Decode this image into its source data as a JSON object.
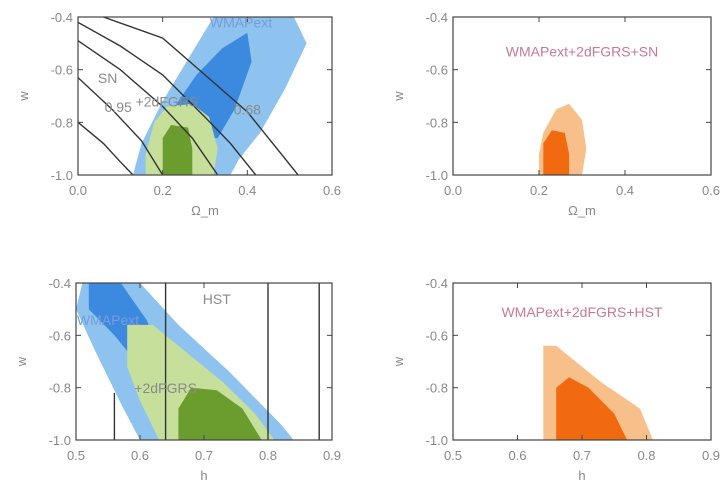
{
  "chart_data": [
    {
      "type": "contour",
      "id": "p1",
      "xlabel": "Ω_m",
      "ylabel": "w",
      "xlim": [
        0.0,
        0.6
      ],
      "ylim": [
        -1.0,
        -0.4
      ],
      "xticks": [
        "0.0",
        "0.2",
        "0.4",
        "0.6"
      ],
      "yticks": [
        "-0.4",
        "-0.6",
        "-0.8",
        "-1.0"
      ],
      "labels": [
        {
          "text": "WMAPext",
          "x": 0.385,
          "y": -0.44,
          "color": "#7a9bd8"
        },
        {
          "text": "SN",
          "x": 0.07,
          "y": -0.65,
          "color": "#8a8a8a"
        },
        {
          "text": "+2dFGRS",
          "x": 0.21,
          "y": -0.74,
          "color": "#8a8a8a"
        },
        {
          "text": "0.95",
          "x": 0.095,
          "y": -0.76,
          "color": "#8a8a8a"
        },
        {
          "text": "0.68",
          "x": 0.4,
          "y": -0.77,
          "color": "#8a8a8a"
        }
      ],
      "series": [
        {
          "color": "#8dc3ee",
          "poly": [
            [
              0.2,
              -1.0
            ],
            [
              0.36,
              -1.0
            ],
            [
              0.38,
              -0.94
            ],
            [
              0.43,
              -0.84
            ],
            [
              0.49,
              -0.67
            ],
            [
              0.54,
              -0.5
            ],
            [
              0.51,
              -0.4
            ],
            [
              0.32,
              -0.4
            ],
            [
              0.26,
              -0.56
            ],
            [
              0.2,
              -0.72
            ],
            [
              0.15,
              -0.88
            ],
            [
              0.13,
              -1.0
            ]
          ]
        },
        {
          "color": "#3b8ae0",
          "poly": [
            [
              0.22,
              -0.86
            ],
            [
              0.33,
              -0.86
            ],
            [
              0.37,
              -0.75
            ],
            [
              0.41,
              -0.57
            ],
            [
              0.4,
              -0.46
            ],
            [
              0.34,
              -0.52
            ],
            [
              0.28,
              -0.62
            ],
            [
              0.22,
              -0.76
            ]
          ]
        },
        {
          "color": "#c6df9a",
          "poly": [
            [
              0.16,
              -1.0
            ],
            [
              0.32,
              -1.0
            ],
            [
              0.33,
              -0.9
            ],
            [
              0.31,
              -0.78
            ],
            [
              0.27,
              -0.73
            ],
            [
              0.21,
              -0.74
            ],
            [
              0.18,
              -0.8
            ],
            [
              0.16,
              -0.92
            ]
          ]
        },
        {
          "color": "#6a9c2e",
          "poly": [
            [
              0.2,
              -1.0
            ],
            [
              0.27,
              -1.0
            ],
            [
              0.27,
              -0.9
            ],
            [
              0.26,
              -0.82
            ],
            [
              0.22,
              -0.81
            ],
            [
              0.2,
              -0.86
            ],
            [
              0.2,
              -0.95
            ]
          ]
        }
      ],
      "lines": [
        {
          "color": "#333333",
          "points": [
            [
              0.0,
              -0.42
            ],
            [
              0.1,
              -0.51
            ],
            [
              0.2,
              -0.62
            ],
            [
              0.3,
              -0.78
            ],
            [
              0.36,
              -0.88
            ],
            [
              0.42,
              -1.0
            ]
          ]
        },
        {
          "color": "#333333",
          "points": [
            [
              0.0,
              -0.49
            ],
            [
              0.1,
              -0.6
            ],
            [
              0.2,
              -0.74
            ],
            [
              0.27,
              -0.86
            ],
            [
              0.33,
              -1.0
            ]
          ]
        },
        {
          "color": "#333333",
          "points": [
            [
              0.0,
              -0.63
            ],
            [
              0.08,
              -0.75
            ],
            [
              0.15,
              -0.87
            ],
            [
              0.2,
              -1.0
            ]
          ]
        },
        {
          "color": "#333333",
          "points": [
            [
              0.0,
              -0.8
            ],
            [
              0.06,
              -0.88
            ],
            [
              0.1,
              -0.95
            ],
            [
              0.13,
              -1.0
            ]
          ]
        },
        {
          "color": "#333333",
          "points": [
            [
              0.06,
              -0.4
            ],
            [
              0.2,
              -0.48
            ],
            [
              0.3,
              -0.62
            ],
            [
              0.4,
              -0.76
            ],
            [
              0.47,
              -0.9
            ],
            [
              0.52,
              -1.0
            ]
          ]
        }
      ]
    },
    {
      "type": "contour",
      "id": "p2",
      "xlabel": "Ω_m",
      "ylabel": "w",
      "xlim": [
        0.0,
        0.6
      ],
      "ylim": [
        -1.0,
        -0.4
      ],
      "xticks": [
        "0.0",
        "0.2",
        "0.4",
        "0.6"
      ],
      "yticks": [
        "-0.4",
        "-0.6",
        "-0.8",
        "-1.0"
      ],
      "labels": [
        {
          "text": "WMAPext+2dFGRS+SN",
          "x": 0.3,
          "y": -0.55,
          "color": "#c87898"
        }
      ],
      "series": [
        {
          "color": "#f7c08a",
          "poly": [
            [
              0.2,
              -1.0
            ],
            [
              0.3,
              -1.0
            ],
            [
              0.31,
              -0.9
            ],
            [
              0.3,
              -0.79
            ],
            [
              0.27,
              -0.73
            ],
            [
              0.24,
              -0.75
            ],
            [
              0.21,
              -0.84
            ],
            [
              0.2,
              -0.92
            ]
          ]
        },
        {
          "color": "#f26a10",
          "poly": [
            [
              0.21,
              -1.0
            ],
            [
              0.27,
              -1.0
            ],
            [
              0.27,
              -0.92
            ],
            [
              0.26,
              -0.84
            ],
            [
              0.23,
              -0.83
            ],
            [
              0.21,
              -0.88
            ]
          ]
        }
      ],
      "lines": []
    },
    {
      "type": "contour",
      "id": "p3",
      "xlabel": "h",
      "ylabel": "w",
      "xlim": [
        0.5,
        0.9
      ],
      "ylim": [
        -1.0,
        -0.4
      ],
      "xticks": [
        "0.5",
        "0.6",
        "0.7",
        "0.8",
        "0.9"
      ],
      "yticks": [
        "-0.4",
        "-0.6",
        "-0.8",
        "-1.0"
      ],
      "labels": [
        {
          "text": "HST",
          "x": 0.72,
          "y": -0.48,
          "color": "#8a8a8a"
        },
        {
          "text": "WMAPext",
          "x": 0.55,
          "y": -0.56,
          "color": "#7a9bd8"
        },
        {
          "text": "+2dFGRS",
          "x": 0.64,
          "y": -0.82,
          "color": "#8a8a8a"
        }
      ],
      "series": [
        {
          "color": "#8dc3ee",
          "poly": [
            [
              0.51,
              -0.4
            ],
            [
              0.6,
              -0.4
            ],
            [
              0.66,
              -0.56
            ],
            [
              0.74,
              -0.74
            ],
            [
              0.82,
              -0.94
            ],
            [
              0.84,
              -1.0
            ],
            [
              0.6,
              -1.0
            ],
            [
              0.57,
              -0.86
            ],
            [
              0.53,
              -0.66
            ],
            [
              0.5,
              -0.5
            ]
          ]
        },
        {
          "color": "#3b8ae0",
          "poly": [
            [
              0.52,
              -0.4
            ],
            [
              0.57,
              -0.4
            ],
            [
              0.61,
              -0.54
            ],
            [
              0.64,
              -0.7
            ],
            [
              0.66,
              -0.84
            ],
            [
              0.63,
              -0.85
            ],
            [
              0.6,
              -0.72
            ],
            [
              0.56,
              -0.6
            ],
            [
              0.52,
              -0.5
            ]
          ]
        },
        {
          "color": "#c6df9a",
          "poly": [
            [
              0.58,
              -0.56
            ],
            [
              0.62,
              -0.56
            ],
            [
              0.67,
              -0.66
            ],
            [
              0.73,
              -0.78
            ],
            [
              0.78,
              -0.9
            ],
            [
              0.81,
              -1.0
            ],
            [
              0.63,
              -1.0
            ],
            [
              0.6,
              -0.85
            ],
            [
              0.58,
              -0.72
            ]
          ]
        },
        {
          "color": "#6a9c2e",
          "poly": [
            [
              0.66,
              -1.0
            ],
            [
              0.79,
              -1.0
            ],
            [
              0.76,
              -0.88
            ],
            [
              0.72,
              -0.81
            ],
            [
              0.68,
              -0.8
            ],
            [
              0.66,
              -0.88
            ]
          ]
        }
      ],
      "lines": [
        {
          "color": "#333333",
          "points": [
            [
              0.56,
              -0.82
            ],
            [
              0.56,
              -1.0
            ]
          ]
        },
        {
          "color": "#333333",
          "points": [
            [
              0.64,
              -0.4
            ],
            [
              0.64,
              -1.0
            ]
          ]
        },
        {
          "color": "#333333",
          "points": [
            [
              0.8,
              -0.4
            ],
            [
              0.8,
              -1.0
            ]
          ]
        },
        {
          "color": "#333333",
          "points": [
            [
              0.88,
              -0.4
            ],
            [
              0.88,
              -1.0
            ]
          ]
        }
      ]
    },
    {
      "type": "contour",
      "id": "p4",
      "xlabel": "h",
      "ylabel": "w",
      "xlim": [
        0.5,
        0.9
      ],
      "ylim": [
        -1.0,
        -0.4
      ],
      "xticks": [
        "0.5",
        "0.6",
        "0.7",
        "0.8",
        "0.9"
      ],
      "yticks": [
        "-0.4",
        "-0.6",
        "-0.8",
        "-1.0"
      ],
      "labels": [
        {
          "text": "WMAPext+2dFGRS+HST",
          "x": 0.7,
          "y": -0.53,
          "color": "#c87898"
        }
      ],
      "series": [
        {
          "color": "#f7c08a",
          "poly": [
            [
              0.64,
              -1.0
            ],
            [
              0.81,
              -1.0
            ],
            [
              0.79,
              -0.88
            ],
            [
              0.73,
              -0.78
            ],
            [
              0.69,
              -0.7
            ],
            [
              0.66,
              -0.64
            ],
            [
              0.64,
              -0.64
            ],
            [
              0.64,
              -0.8
            ]
          ]
        },
        {
          "color": "#f26a10",
          "poly": [
            [
              0.66,
              -1.0
            ],
            [
              0.77,
              -1.0
            ],
            [
              0.75,
              -0.9
            ],
            [
              0.71,
              -0.8
            ],
            [
              0.68,
              -0.76
            ],
            [
              0.66,
              -0.8
            ],
            [
              0.66,
              -0.9
            ]
          ]
        }
      ],
      "lines": []
    }
  ]
}
